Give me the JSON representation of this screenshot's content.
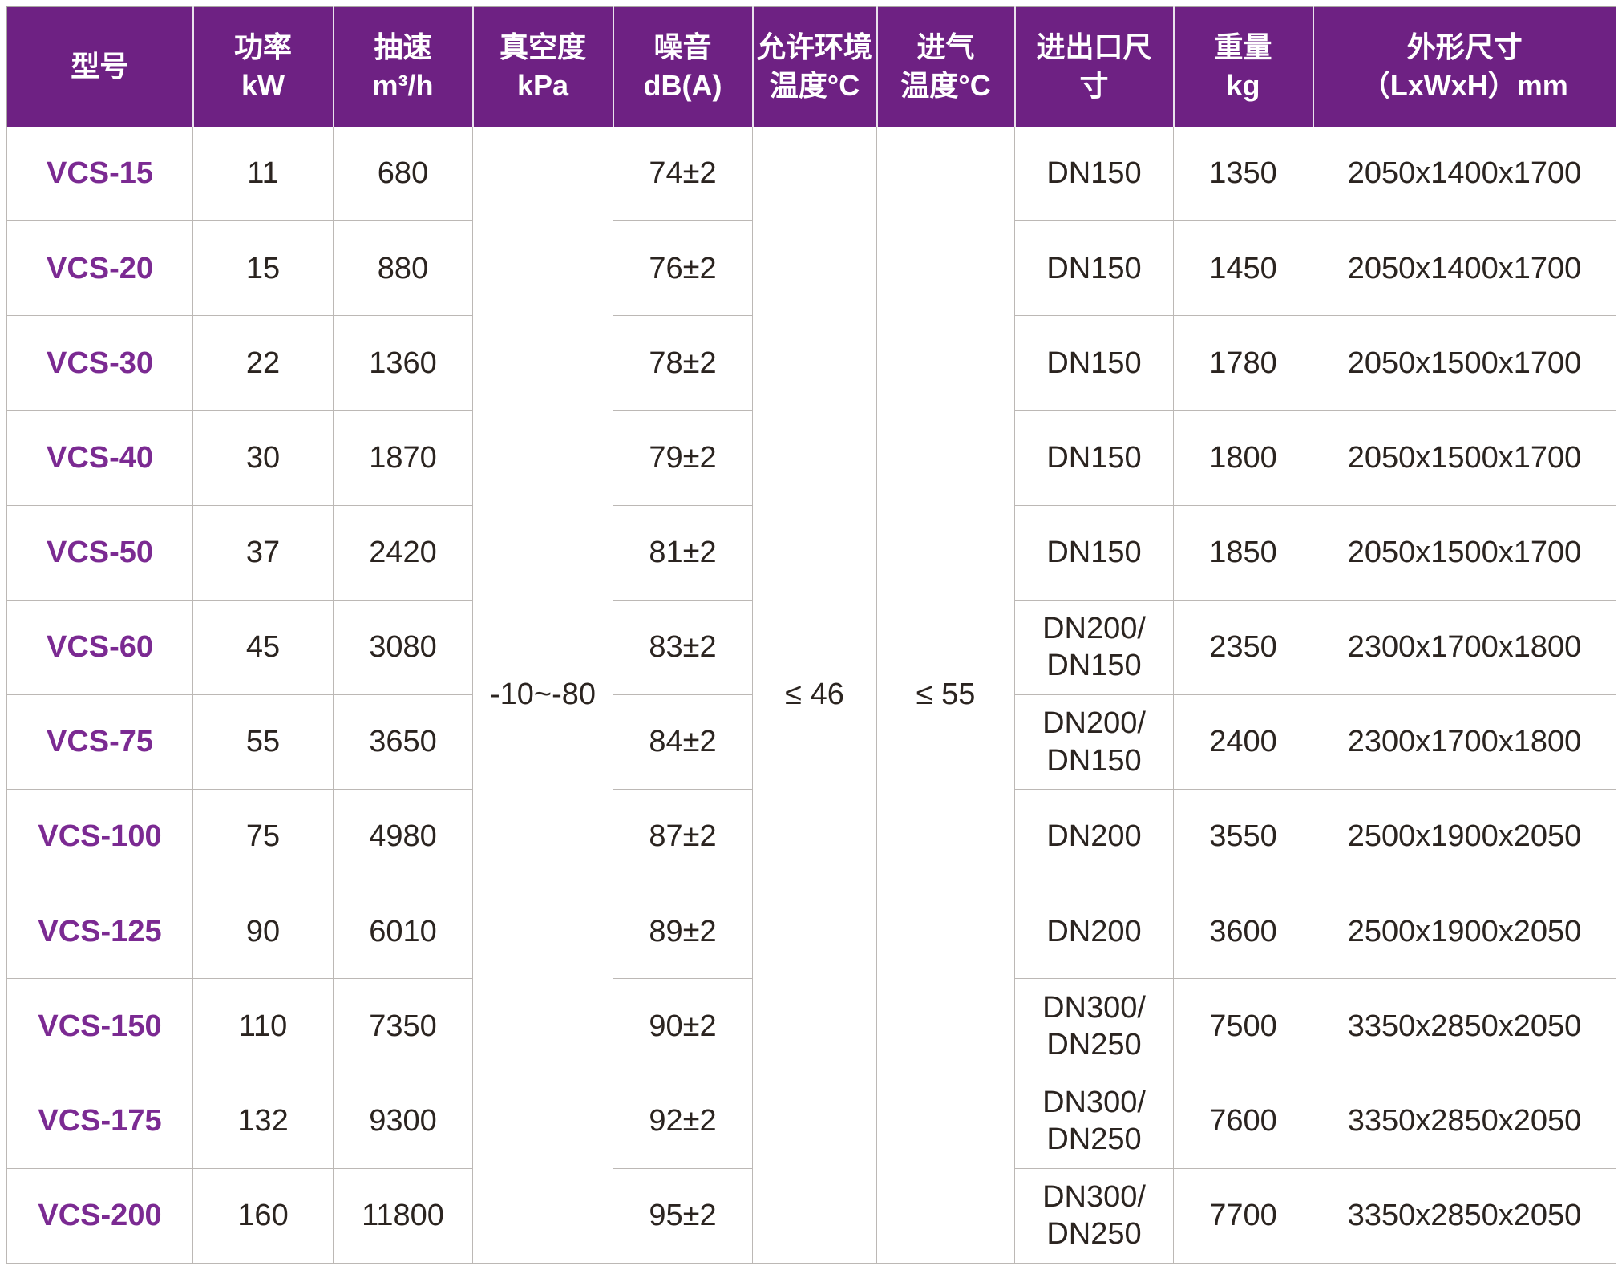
{
  "table": {
    "colors": {
      "header_bg": "#6E2183",
      "model_text": "#7B2A92",
      "body_text": "#2B2420",
      "grid_line": "#BCB8B5"
    },
    "columns": [
      {
        "key": "model",
        "header_lines": [
          "型号"
        ]
      },
      {
        "key": "power",
        "header_lines": [
          "功率",
          "kW"
        ]
      },
      {
        "key": "speed",
        "header_lines": [
          "抽速",
          "m³/h"
        ]
      },
      {
        "key": "vacuum",
        "header_lines": [
          "真空度",
          "kPa"
        ],
        "merged": true
      },
      {
        "key": "noise",
        "header_lines": [
          "噪音",
          "dB(A)"
        ]
      },
      {
        "key": "ambient",
        "header_lines": [
          "允许环境",
          "温度°C"
        ],
        "merged": true
      },
      {
        "key": "intake",
        "header_lines": [
          "进气",
          "温度°C"
        ],
        "merged": true
      },
      {
        "key": "port",
        "header_lines": [
          "进出口尺",
          "寸"
        ]
      },
      {
        "key": "weight",
        "header_lines": [
          "重量",
          "kg"
        ]
      },
      {
        "key": "dims",
        "header_lines": [
          "外形尺寸",
          "（LxWxH）mm"
        ]
      }
    ],
    "merged_values": {
      "vacuum": "-10~-80",
      "ambient": "≤ 46",
      "intake": "≤ 55"
    },
    "rows": [
      {
        "model": "VCS-15",
        "power": "11",
        "speed": "680",
        "noise": "74±2",
        "port": [
          "DN150"
        ],
        "weight": "1350",
        "dims": "2050x1400x1700"
      },
      {
        "model": "VCS-20",
        "power": "15",
        "speed": "880",
        "noise": "76±2",
        "port": [
          "DN150"
        ],
        "weight": "1450",
        "dims": "2050x1400x1700"
      },
      {
        "model": "VCS-30",
        "power": "22",
        "speed": "1360",
        "noise": "78±2",
        "port": [
          "DN150"
        ],
        "weight": "1780",
        "dims": "2050x1500x1700"
      },
      {
        "model": "VCS-40",
        "power": "30",
        "speed": "1870",
        "noise": "79±2",
        "port": [
          "DN150"
        ],
        "weight": "1800",
        "dims": "2050x1500x1700"
      },
      {
        "model": "VCS-50",
        "power": "37",
        "speed": "2420",
        "noise": "81±2",
        "port": [
          "DN150"
        ],
        "weight": "1850",
        "dims": "2050x1500x1700"
      },
      {
        "model": "VCS-60",
        "power": "45",
        "speed": "3080",
        "noise": "83±2",
        "port": [
          "DN200/",
          "DN150"
        ],
        "weight": "2350",
        "dims": "2300x1700x1800"
      },
      {
        "model": "VCS-75",
        "power": "55",
        "speed": "3650",
        "noise": "84±2",
        "port": [
          "DN200/",
          "DN150"
        ],
        "weight": "2400",
        "dims": "2300x1700x1800"
      },
      {
        "model": "VCS-100",
        "power": "75",
        "speed": "4980",
        "noise": "87±2",
        "port": [
          "DN200"
        ],
        "weight": "3550",
        "dims": "2500x1900x2050"
      },
      {
        "model": "VCS-125",
        "power": "90",
        "speed": "6010",
        "noise": "89±2",
        "port": [
          "DN200"
        ],
        "weight": "3600",
        "dims": "2500x1900x2050"
      },
      {
        "model": "VCS-150",
        "power": "110",
        "speed": "7350",
        "noise": "90±2",
        "port": [
          "DN300/",
          "DN250"
        ],
        "weight": "7500",
        "dims": "3350x2850x2050"
      },
      {
        "model": "VCS-175",
        "power": "132",
        "speed": "9300",
        "noise": "92±2",
        "port": [
          "DN300/",
          "DN250"
        ],
        "weight": "7600",
        "dims": "3350x2850x2050"
      },
      {
        "model": "VCS-200",
        "power": "160",
        "speed": "11800",
        "noise": "95±2",
        "port": [
          "DN300/",
          "DN250"
        ],
        "weight": "7700",
        "dims": "3350x2850x2050"
      }
    ]
  }
}
